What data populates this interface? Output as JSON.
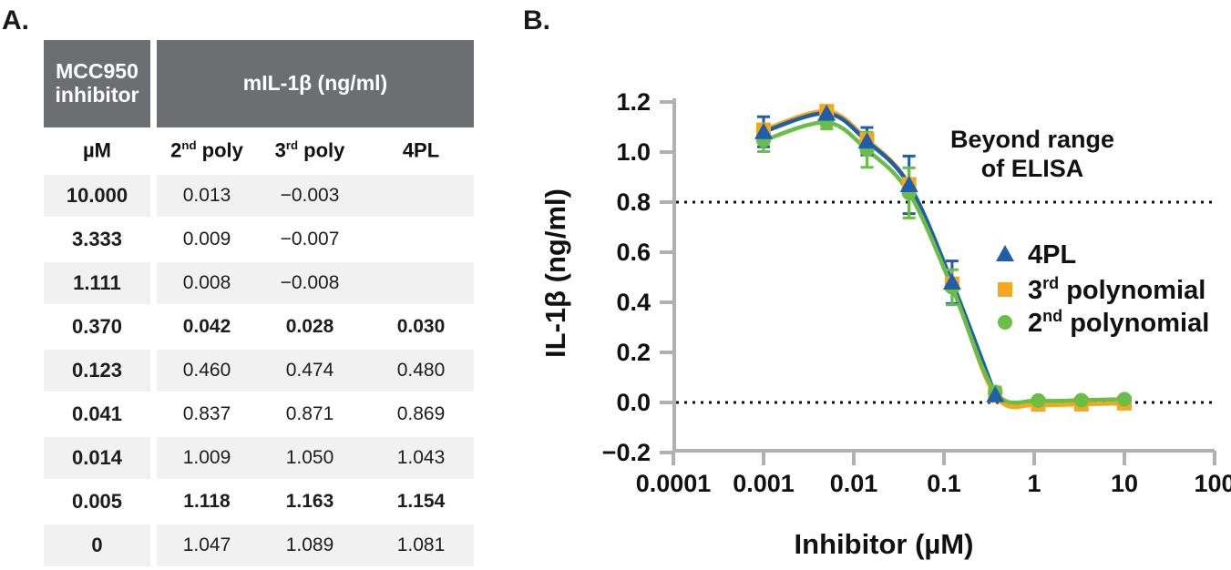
{
  "panels": {
    "a": "A.",
    "b": "B."
  },
  "colors": {
    "header_bg": "#6D6E71",
    "row_stripe": "#F1F1F2",
    "axis_gray": "#B1B1B1",
    "blue": "#1F5FA9",
    "orange": "#F5A81E",
    "green": "#6ABD45",
    "dashed_line": "#111111"
  },
  "table": {
    "header": {
      "col1_line1": "MCC950",
      "col1_line2": "inhibitor",
      "span": "mIL-1β (ng/ml)"
    },
    "subheader": [
      {
        "pre": "µM",
        "sup": "",
        "post": ""
      },
      {
        "pre": "2",
        "sup": "nd",
        "post": " poly"
      },
      {
        "pre": "3",
        "sup": "rd",
        "post": " poly"
      },
      {
        "pre": "4PL",
        "sup": "",
        "post": ""
      }
    ],
    "rows": [
      {
        "um": "10.000",
        "poly2": "0.013",
        "poly3": "−0.003",
        "pl4": "",
        "emphasis": false
      },
      {
        "um": "3.333",
        "poly2": "0.009",
        "poly3": "−0.007",
        "pl4": "",
        "emphasis": false
      },
      {
        "um": "1.111",
        "poly2": "0.008",
        "poly3": "−0.008",
        "pl4": "",
        "emphasis": false
      },
      {
        "um": "0.370",
        "poly2": "0.042",
        "poly3": "0.028",
        "pl4": "0.030",
        "emphasis": true
      },
      {
        "um": "0.123",
        "poly2": "0.460",
        "poly3": "0.474",
        "pl4": "0.480",
        "emphasis": false
      },
      {
        "um": "0.041",
        "poly2": "0.837",
        "poly3": "0.871",
        "pl4": "0.869",
        "emphasis": false
      },
      {
        "um": "0.014",
        "poly2": "1.009",
        "poly3": "1.050",
        "pl4": "1.043",
        "emphasis": false
      },
      {
        "um": "0.005",
        "poly2": "1.118",
        "poly3": "1.163",
        "pl4": "1.154",
        "emphasis": true
      },
      {
        "um": "0",
        "poly2": "1.047",
        "poly3": "1.089",
        "pl4": "1.081",
        "emphasis": false
      }
    ]
  },
  "chart_data": {
    "type": "scatter",
    "title": "",
    "xlabel": "Inhibitor (µM)",
    "ylabel": "IL-1β (ng/ml)",
    "x_scale": "log",
    "xlim": [
      0.0001,
      100
    ],
    "ylim": [
      -0.2,
      1.2
    ],
    "x_ticks": [
      0.0001,
      0.001,
      0.01,
      0.1,
      1,
      10,
      100
    ],
    "x_tick_labels": [
      "0.0001",
      "0.001",
      "0.01",
      "0.1",
      "1",
      "10",
      "100"
    ],
    "y_ticks": [
      1.2,
      1.0,
      0.8,
      0.6,
      0.4,
      0.2,
      0.0,
      -0.2
    ],
    "y_tick_labels": [
      "1.2",
      "1.0",
      "0.8",
      "0.6",
      "0.4",
      "0.2",
      "0.0",
      "−0.2"
    ],
    "grid": false,
    "reference_lines": [
      {
        "y": 0.8,
        "style": "dashed"
      },
      {
        "y": 0.0,
        "style": "dashed"
      }
    ],
    "annotation": {
      "lines": [
        "Beyond range",
        "of ELISA"
      ]
    },
    "legend_position": "right-inside",
    "series": [
      {
        "name": "4PL",
        "label_parts": {
          "pre": "4PL",
          "sup": "",
          "post": ""
        },
        "marker": "triangle",
        "color": "#1F5FA9",
        "x": [
          0.001,
          0.005,
          0.014,
          0.041,
          0.123,
          0.37
        ],
        "y": [
          1.081,
          1.154,
          1.043,
          0.869,
          0.48,
          0.03
        ],
        "yerr": [
          0.06,
          0.03,
          0.055,
          0.115,
          0.085,
          0.025
        ]
      },
      {
        "name": "3rd polynomial",
        "label_parts": {
          "pre": "3",
          "sup": "rd",
          "post": " polynomial"
        },
        "marker": "square",
        "color": "#F5A81E",
        "x": [
          0.001,
          0.005,
          0.014,
          0.041,
          0.123,
          0.37,
          1.111,
          3.333,
          10
        ],
        "y": [
          1.089,
          1.163,
          1.05,
          0.871,
          0.474,
          0.028,
          -0.008,
          -0.007,
          -0.003
        ],
        "yerr": [
          0,
          0,
          0,
          0,
          0,
          0,
          0,
          0,
          0
        ]
      },
      {
        "name": "2nd polynomial",
        "label_parts": {
          "pre": "2",
          "sup": "nd",
          "post": " polynomial"
        },
        "marker": "circle",
        "color": "#6ABD45",
        "x": [
          0.001,
          0.005,
          0.014,
          0.041,
          0.123,
          0.37,
          1.111,
          3.333,
          10
        ],
        "y": [
          1.047,
          1.118,
          1.009,
          0.837,
          0.46,
          0.042,
          0.008,
          0.009,
          0.013
        ],
        "yerr": [
          0.045,
          0.025,
          0.07,
          0.1,
          0.07,
          0.02,
          0,
          0,
          0
        ]
      }
    ],
    "note_x_mapping": "leftmost plotted point (0.001) corresponds to the 0 µM table row"
  }
}
